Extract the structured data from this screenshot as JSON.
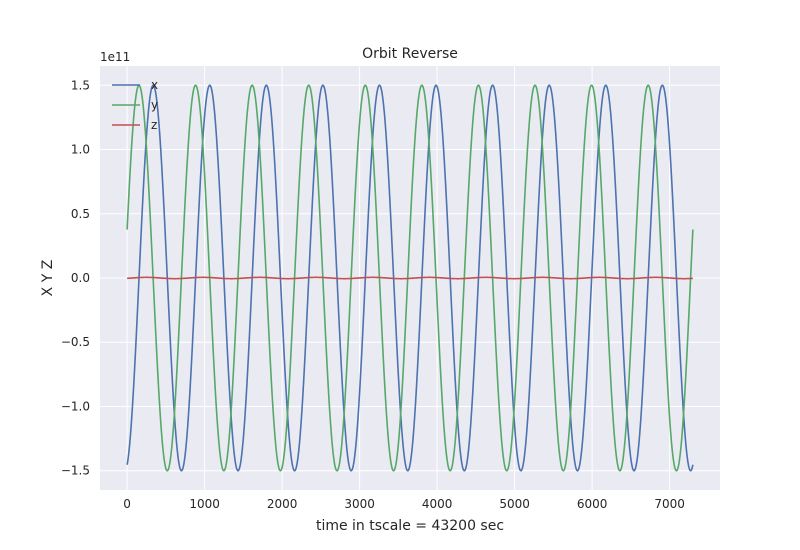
{
  "chart_data": {
    "type": "line",
    "title": "Orbit Reverse",
    "xlabel": "time in tscale = 43200 sec",
    "ylabel": "X Y Z",
    "offset_text": "1e11",
    "xlim": [
      -350,
      7650
    ],
    "ylim": [
      -1.65,
      1.65
    ],
    "y_scale_factor": 100000000000.0,
    "xticks": [
      0,
      1000,
      2000,
      3000,
      4000,
      5000,
      6000,
      7000
    ],
    "xtick_labels": [
      "0",
      "1000",
      "2000",
      "3000",
      "4000",
      "5000",
      "6000",
      "7000"
    ],
    "yticks": [
      -1.5,
      -1.0,
      -0.5,
      0.0,
      0.5,
      1.0,
      1.5
    ],
    "ytick_labels": [
      "−1.5",
      "−1.0",
      "−0.5",
      "0.0",
      "0.5",
      "1.0",
      "1.5"
    ],
    "grid": true,
    "legend": "upper-left",
    "background_color": "#eaeaf2",
    "x_domain": [
      0,
      7300
    ],
    "series": [
      {
        "name": "x",
        "color": "#4c72b0",
        "amplitude": 1.5,
        "period": 730,
        "peak_at": 336,
        "description_values": {
          "start": -1.44,
          "end": -1.47
        }
      },
      {
        "name": "y",
        "color": "#55a868",
        "amplitude": 1.5,
        "period": 730,
        "peak_at": 153,
        "description_values": {
          "start": 0.36,
          "end": 0.2
        }
      },
      {
        "name": "z",
        "color": "#c44e52",
        "amplitude": 0.005,
        "period": 730,
        "peak_at": 250,
        "description_values": {
          "start": 0.0,
          "end": 0.0
        }
      }
    ]
  }
}
